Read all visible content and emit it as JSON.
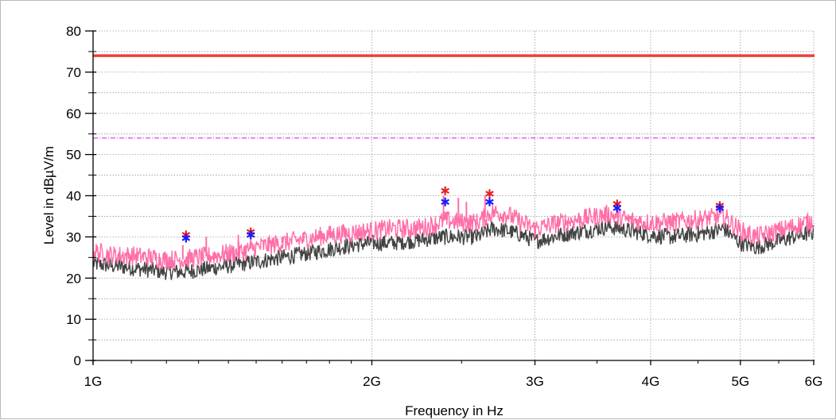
{
  "chart_data": {
    "type": "line",
    "xlabel": "Frequency in Hz",
    "ylabel": "Level in dBµV/m",
    "x_scale": "log",
    "xlim": [
      1000000000,
      6000000000
    ],
    "ylim": [
      0,
      80
    ],
    "grid": true,
    "x_ticks": [
      {
        "value": 1000000000,
        "label": "1G"
      },
      {
        "value": 2000000000,
        "label": "2G"
      },
      {
        "value": 3000000000,
        "label": "3G"
      },
      {
        "value": 4000000000,
        "label": "4G"
      },
      {
        "value": 5000000000,
        "label": "5G"
      },
      {
        "value": 6000000000,
        "label": "6G"
      }
    ],
    "x_minor_ticks": [
      1100000000,
      1200000000,
      1300000000,
      1400000000,
      1500000000,
      1600000000,
      1700000000,
      1800000000,
      1900000000,
      2500000000,
      3500000000,
      4500000000,
      5500000000
    ],
    "y_ticks": [
      0,
      10,
      20,
      30,
      40,
      50,
      60,
      70,
      80
    ],
    "y_tick_labels": [
      "0",
      "10",
      "20",
      "30",
      "40",
      "50",
      "60",
      "70",
      "80"
    ],
    "limit_lines": [
      {
        "id": "peak-limit",
        "value": 74,
        "color": "#e8413c",
        "style": "solid"
      },
      {
        "id": "average-limit",
        "value": 54,
        "color": "#e040e0",
        "style": "dash-dot"
      }
    ],
    "series": [
      {
        "id": "peak-trace",
        "color": "#ff6ea8",
        "x": [
          1000000000,
          1050000000,
          1100000000,
          1150000000,
          1200000000,
          1250000000,
          1300000000,
          1350000000,
          1400000000,
          1450000000,
          1500000000,
          1600000000,
          1700000000,
          1800000000,
          1900000000,
          2000000000,
          2100000000,
          2200000000,
          2300000000,
          2400000000,
          2500000000,
          2600000000,
          2700000000,
          2800000000,
          2900000000,
          3000000000,
          3200000000,
          3400000000,
          3600000000,
          3800000000,
          4000000000,
          4200000000,
          4400000000,
          4600000000,
          4800000000,
          5000000000,
          5200000000,
          5400000000,
          5600000000,
          5800000000,
          6000000000
        ],
        "values": [
          26.5,
          25.5,
          25.5,
          25.0,
          24.5,
          24.5,
          25.0,
          25.5,
          26.0,
          26.5,
          27.5,
          28.5,
          29.5,
          30.5,
          31.0,
          31.5,
          32.0,
          32.0,
          32.5,
          34.0,
          33.5,
          33.5,
          36.0,
          35.5,
          33.5,
          32.0,
          33.5,
          34.5,
          35.5,
          34.0,
          33.5,
          33.5,
          34.0,
          34.5,
          35.0,
          31.5,
          30.0,
          31.0,
          32.0,
          33.0,
          34.0
        ]
      },
      {
        "id": "average-trace",
        "color": "#444444",
        "x": [
          1000000000,
          1050000000,
          1100000000,
          1150000000,
          1200000000,
          1250000000,
          1300000000,
          1350000000,
          1400000000,
          1450000000,
          1500000000,
          1600000000,
          1700000000,
          1800000000,
          1900000000,
          2000000000,
          2100000000,
          2200000000,
          2300000000,
          2400000000,
          2500000000,
          2600000000,
          2700000000,
          2800000000,
          2900000000,
          3000000000,
          3200000000,
          3400000000,
          3600000000,
          3800000000,
          4000000000,
          4200000000,
          4400000000,
          4600000000,
          4800000000,
          5000000000,
          5200000000,
          5400000000,
          5600000000,
          5800000000,
          6000000000
        ],
        "values": [
          23.5,
          23.0,
          22.5,
          22.0,
          21.5,
          21.5,
          22.0,
          22.5,
          23.0,
          23.5,
          24.0,
          25.0,
          26.0,
          27.0,
          28.0,
          28.5,
          28.5,
          29.0,
          29.5,
          30.0,
          30.0,
          30.0,
          32.0,
          31.5,
          30.5,
          29.0,
          30.5,
          31.5,
          32.5,
          31.5,
          30.5,
          30.0,
          30.5,
          31.0,
          32.0,
          28.5,
          27.5,
          28.5,
          29.5,
          30.5,
          31.0
        ]
      }
    ],
    "spikes": [
      {
        "x": 1250000000,
        "value": 28.0
      },
      {
        "x": 1325000000,
        "value": 30.0
      },
      {
        "x": 1435000000,
        "value": 30.5
      },
      {
        "x": 1480000000,
        "value": 31.5
      },
      {
        "x": 1600000000,
        "value": 30.0
      },
      {
        "x": 2390000000,
        "value": 40.0
      },
      {
        "x": 2480000000,
        "value": 39.5
      },
      {
        "x": 2530000000,
        "value": 38.5
      },
      {
        "x": 2650000000,
        "value": 40.0
      },
      {
        "x": 3000000000,
        "value": 32.5
      }
    ],
    "markers": [
      {
        "id": "qp-peak",
        "color": "#e82020",
        "points": [
          {
            "x": 1260000000,
            "value": 30.5
          },
          {
            "x": 1480000000,
            "value": 31.2
          },
          {
            "x": 2400000000,
            "value": 41.2
          },
          {
            "x": 2680000000,
            "value": 40.5
          },
          {
            "x": 3680000000,
            "value": 38.0
          },
          {
            "x": 4750000000,
            "value": 37.6
          }
        ]
      },
      {
        "id": "avg-peak",
        "color": "#1a1aff",
        "points": [
          {
            "x": 1260000000,
            "value": 29.7
          },
          {
            "x": 1480000000,
            "value": 30.5
          },
          {
            "x": 2400000000,
            "value": 38.5
          },
          {
            "x": 2680000000,
            "value": 38.5
          },
          {
            "x": 3680000000,
            "value": 37.0
          },
          {
            "x": 4750000000,
            "value": 37.0
          }
        ]
      }
    ]
  }
}
